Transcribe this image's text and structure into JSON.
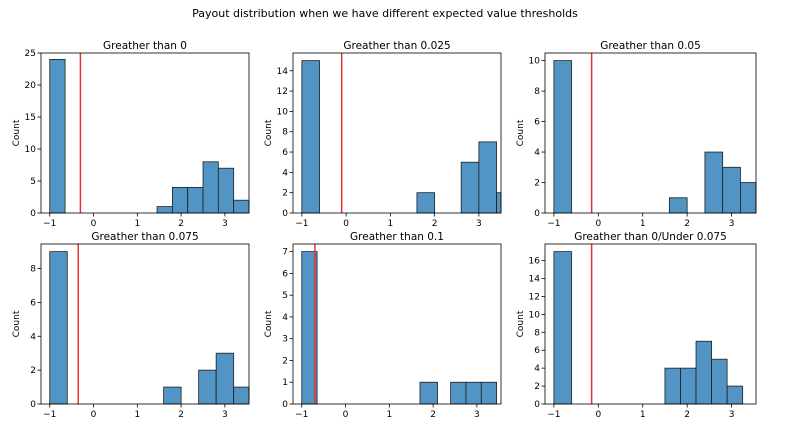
{
  "figure": {
    "title": "Payout distribution when we have different expected value thresholds"
  },
  "colors": {
    "bar": "#5294c4",
    "edge": "#1f1f1f",
    "threshold": "#e8322d"
  },
  "chart_data": [
    {
      "type": "bar",
      "title": "Greather than 0",
      "ylabel": "Count",
      "xlim": [
        -1.2,
        3.55
      ],
      "ylim": [
        0,
        25
      ],
      "xticks": [
        -1,
        0,
        1,
        2,
        3
      ],
      "yticks": [
        0,
        5,
        10,
        15,
        20,
        25
      ],
      "bins": [
        {
          "x0": -1.0,
          "x1": -0.65,
          "count": 24
        },
        {
          "x0": 1.45,
          "x1": 1.8,
          "count": 1
        },
        {
          "x0": 1.8,
          "x1": 2.15,
          "count": 4
        },
        {
          "x0": 2.15,
          "x1": 2.5,
          "count": 4
        },
        {
          "x0": 2.5,
          "x1": 2.85,
          "count": 8
        },
        {
          "x0": 2.85,
          "x1": 3.2,
          "count": 7
        },
        {
          "x0": 3.2,
          "x1": 3.55,
          "count": 2
        }
      ],
      "threshold_x": -0.3
    },
    {
      "type": "bar",
      "title": "Greather than 0.025",
      "ylabel": "Count",
      "xlim": [
        -1.2,
        3.5
      ],
      "ylim": [
        0,
        15.75
      ],
      "xticks": [
        -1,
        0,
        1,
        2,
        3
      ],
      "yticks": [
        0,
        2,
        4,
        6,
        8,
        10,
        12,
        14
      ],
      "bins": [
        {
          "x0": -1.0,
          "x1": -0.6,
          "count": 15
        },
        {
          "x0": 1.6,
          "x1": 2.0,
          "count": 2
        },
        {
          "x0": 2.6,
          "x1": 3.0,
          "count": 5
        },
        {
          "x0": 3.0,
          "x1": 3.4,
          "count": 7
        },
        {
          "x0": 3.4,
          "x1": 3.8,
          "count": 2
        }
      ],
      "threshold_x": -0.1
    },
    {
      "type": "bar",
      "title": "Greather than 0.05",
      "ylabel": "Count",
      "xlim": [
        -1.2,
        3.55
      ],
      "ylim": [
        0,
        10.5
      ],
      "xticks": [
        -1,
        0,
        1,
        2,
        3
      ],
      "yticks": [
        0,
        2,
        4,
        6,
        8,
        10
      ],
      "bins": [
        {
          "x0": -1.0,
          "x1": -0.6,
          "count": 10
        },
        {
          "x0": 1.6,
          "x1": 2.0,
          "count": 1
        },
        {
          "x0": 2.4,
          "x1": 2.8,
          "count": 4
        },
        {
          "x0": 2.8,
          "x1": 3.2,
          "count": 3
        },
        {
          "x0": 3.2,
          "x1": 3.6,
          "count": 2
        }
      ],
      "threshold_x": -0.15
    },
    {
      "type": "bar",
      "title": "Greather than 0.075",
      "ylabel": "Count",
      "xlim": [
        -1.2,
        3.55
      ],
      "ylim": [
        0,
        9.45
      ],
      "xticks": [
        -1,
        0,
        1,
        2,
        3
      ],
      "yticks": [
        0,
        2,
        4,
        6,
        8
      ],
      "bins": [
        {
          "x0": -1.0,
          "x1": -0.6,
          "count": 9
        },
        {
          "x0": 1.6,
          "x1": 2.0,
          "count": 1
        },
        {
          "x0": 2.4,
          "x1": 2.8,
          "count": 2
        },
        {
          "x0": 2.8,
          "x1": 3.2,
          "count": 3
        },
        {
          "x0": 3.2,
          "x1": 3.6,
          "count": 1
        }
      ],
      "threshold_x": -0.35
    },
    {
      "type": "bar",
      "title": "Greather than 0.1",
      "ylabel": "Count",
      "xlim": [
        -1.2,
        3.55
      ],
      "ylim": [
        0,
        7.35
      ],
      "xticks": [
        -1,
        0,
        1,
        2,
        3
      ],
      "yticks": [
        0,
        1,
        2,
        3,
        4,
        5,
        6,
        7
      ],
      "bins": [
        {
          "x0": -1.0,
          "x1": -0.65,
          "count": 7
        },
        {
          "x0": 1.7,
          "x1": 2.1,
          "count": 1
        },
        {
          "x0": 2.4,
          "x1": 2.75,
          "count": 1
        },
        {
          "x0": 2.75,
          "x1": 3.1,
          "count": 1
        },
        {
          "x0": 3.1,
          "x1": 3.45,
          "count": 1
        }
      ],
      "threshold_x": -0.7
    },
    {
      "type": "bar",
      "title": "Greather than 0/Under 0.075",
      "ylabel": "Count",
      "xlim": [
        -1.2,
        3.55
      ],
      "ylim": [
        0,
        17.85
      ],
      "xticks": [
        -1,
        0,
        1,
        2,
        3
      ],
      "yticks": [
        0,
        2,
        4,
        6,
        8,
        10,
        12,
        14,
        16
      ],
      "bins": [
        {
          "x0": -1.0,
          "x1": -0.6,
          "count": 17
        },
        {
          "x0": 1.5,
          "x1": 1.85,
          "count": 4
        },
        {
          "x0": 1.85,
          "x1": 2.2,
          "count": 4
        },
        {
          "x0": 2.2,
          "x1": 2.55,
          "count": 7
        },
        {
          "x0": 2.55,
          "x1": 2.9,
          "count": 5
        },
        {
          "x0": 2.9,
          "x1": 3.25,
          "count": 2
        }
      ],
      "threshold_x": -0.15
    }
  ]
}
